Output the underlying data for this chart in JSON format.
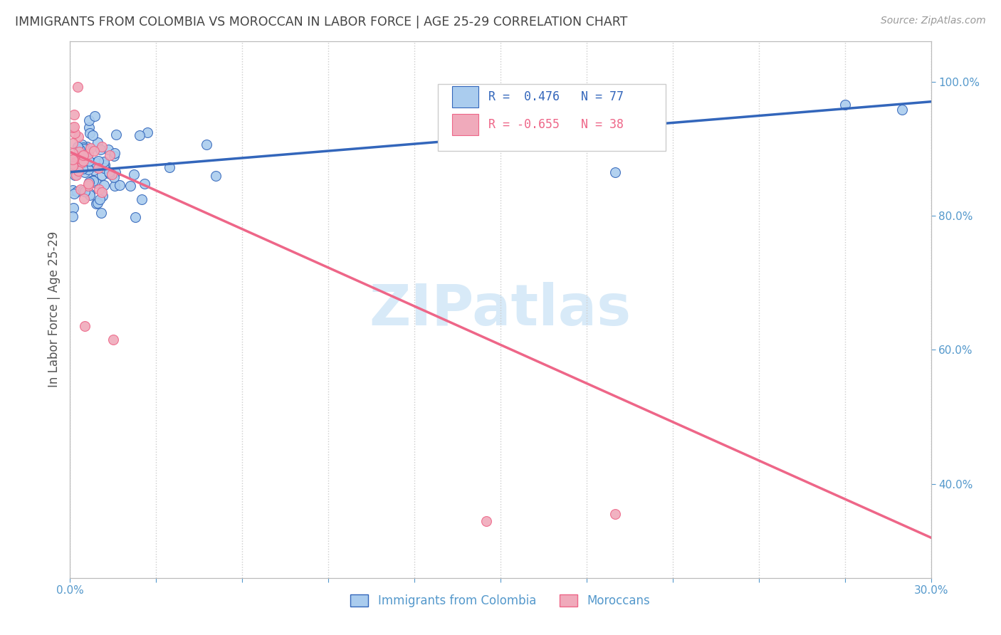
{
  "title": "IMMIGRANTS FROM COLOMBIA VS MOROCCAN IN LABOR FORCE | AGE 25-29 CORRELATION CHART",
  "source": "Source: ZipAtlas.com",
  "ylabel": "In Labor Force | Age 25-29",
  "colombia_R": 0.476,
  "colombia_N": 77,
  "moroccan_R": -0.655,
  "moroccan_N": 38,
  "colombia_color": "#aaccee",
  "moroccan_color": "#f0aabb",
  "colombia_line_color": "#3366bb",
  "moroccan_line_color": "#ee6688",
  "watermark_color": "#d8eaf8",
  "background_color": "#ffffff",
  "title_color": "#444444",
  "source_color": "#999999",
  "tick_color": "#5599cc",
  "ylabel_color": "#555555",
  "xlim": [
    0.0,
    0.3
  ],
  "ylim": [
    0.26,
    1.06
  ],
  "yticks": [
    0.4,
    0.6,
    0.8,
    1.0
  ],
  "colombia_trend_x": [
    0.0,
    0.3
  ],
  "colombia_trend_y": [
    0.865,
    0.97
  ],
  "moroccan_trend_x": [
    0.0,
    0.3
  ],
  "moroccan_trend_y": [
    0.895,
    0.32
  ]
}
